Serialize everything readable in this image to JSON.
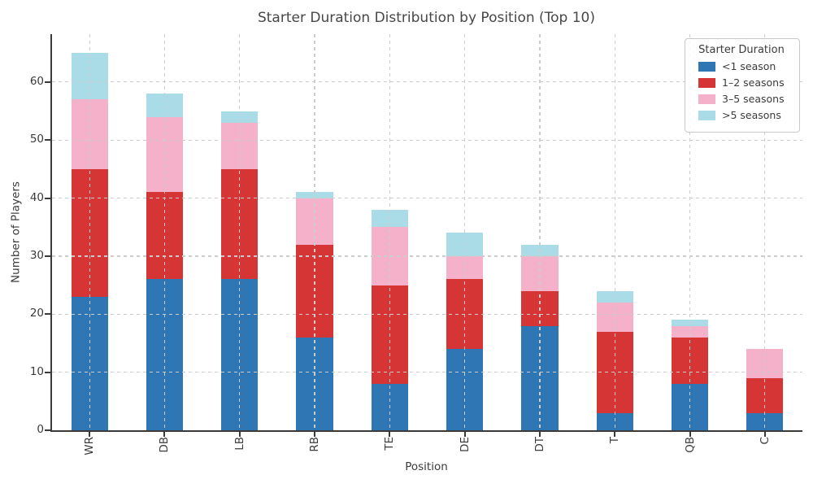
{
  "chart": {
    "title": "Starter Duration Distribution by Position (Top 10)",
    "xlabel": "Position",
    "ylabel": "Number of Players"
  },
  "legend": {
    "title": "Starter Duration"
  },
  "chart_data": {
    "type": "bar",
    "stacked": true,
    "title": "Starter Duration Distribution by Position (Top 10)",
    "xlabel": "Position",
    "ylabel": "Number of Players",
    "categories": [
      "WR",
      "DB",
      "LB",
      "RB",
      "TE",
      "DE",
      "DT",
      "T",
      "QB",
      "C"
    ],
    "series": [
      {
        "name": "<1 season",
        "color": "#2e76b4",
        "values": [
          23,
          26,
          26,
          16,
          8,
          14,
          18,
          3,
          8,
          3
        ]
      },
      {
        "name": "1–2 seasons",
        "color": "#d53535",
        "values": [
          22,
          15,
          19,
          16,
          17,
          12,
          6,
          14,
          8,
          6
        ]
      },
      {
        "name": "3–5 seasons",
        "color": "#f4b1c9",
        "values": [
          12,
          13,
          8,
          8,
          10,
          4,
          6,
          5,
          2,
          5
        ]
      },
      {
        "name": ">5 seasons",
        "color": "#a9dce6",
        "values": [
          8,
          4,
          2,
          1,
          3,
          4,
          2,
          2,
          1,
          0
        ]
      }
    ],
    "totals": [
      65,
      58,
      55,
      41,
      38,
      34,
      32,
      24,
      19,
      14
    ],
    "yticks": [
      0,
      10,
      20,
      30,
      40,
      50,
      60
    ],
    "ylim": [
      0,
      68.25
    ],
    "grid": "both axes, dashed light gray, drawn above bars",
    "legend_title": "Starter Duration",
    "legend_position": "upper right",
    "bar_width_ratio": 0.49,
    "xtick_rotation": 90
  }
}
